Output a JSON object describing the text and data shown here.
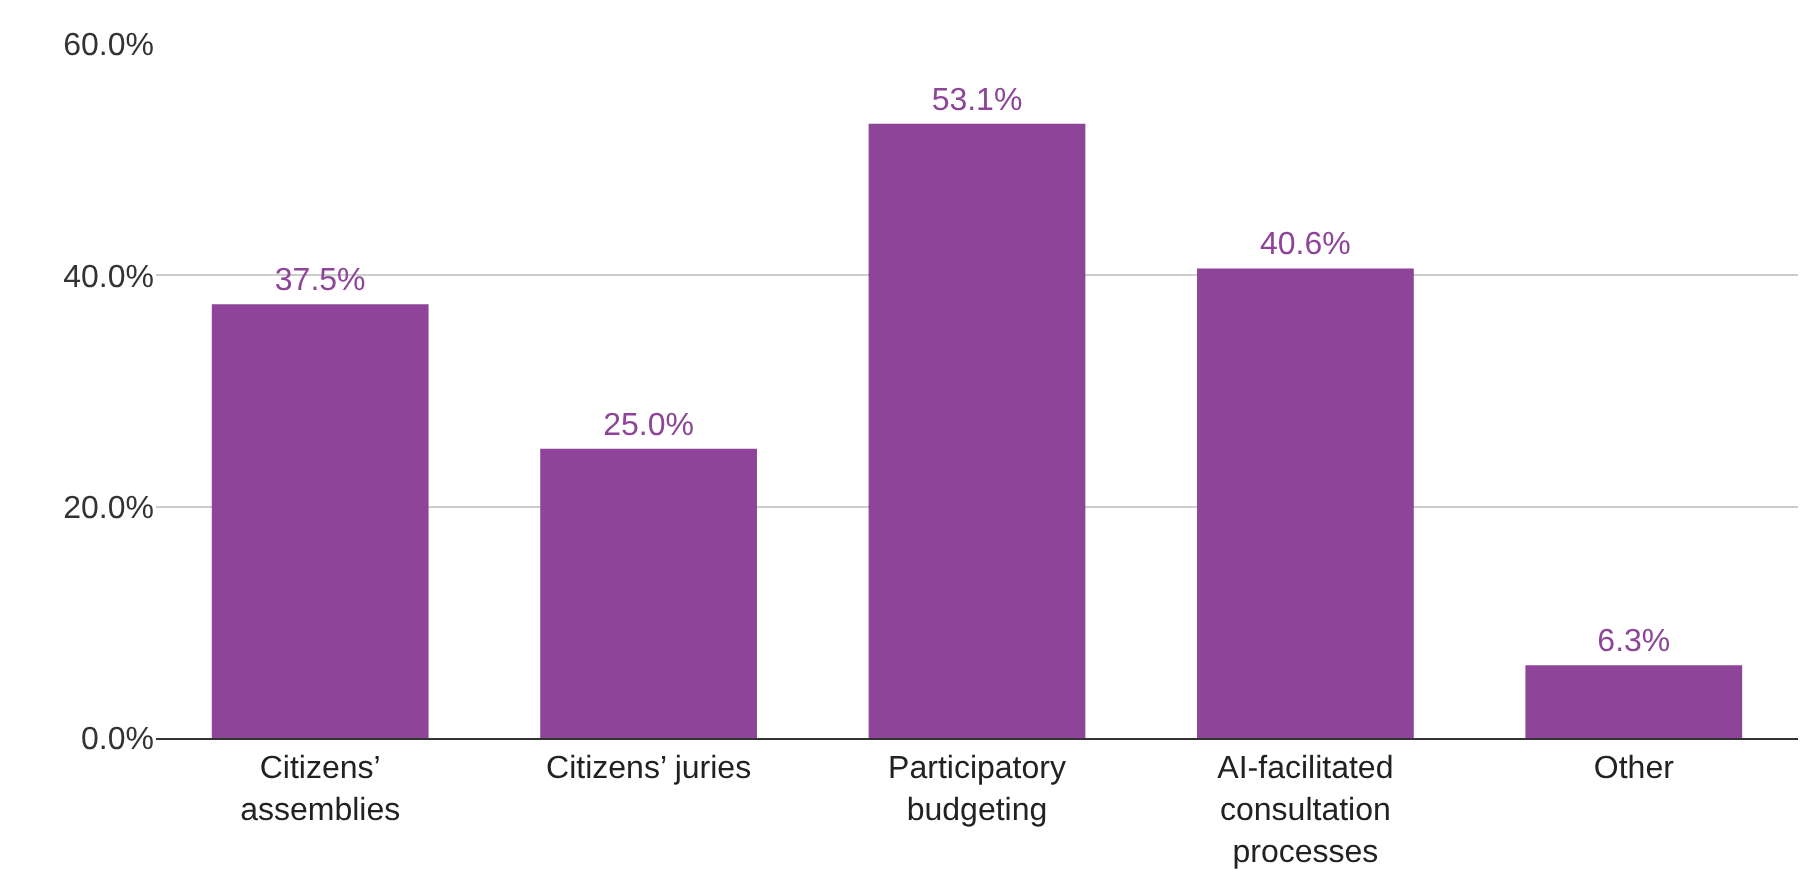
{
  "chart_data": {
    "type": "bar",
    "categories": [
      "Citizens’ assemblies",
      "Citizens’ juries",
      "Participatory budgeting",
      "AI-facilitated consultation processes",
      "Other"
    ],
    "values": [
      37.5,
      25.0,
      53.1,
      40.6,
      6.3
    ],
    "value_labels": [
      "37.5%",
      "25.0%",
      "53.1%",
      "40.6%",
      "6.3%"
    ],
    "color": "#8e4498",
    "ylim": [
      0,
      60
    ],
    "yticks": [
      {
        "value": 0,
        "label": "0.0%"
      },
      {
        "value": 20,
        "label": "20.0%"
      },
      {
        "value": 40,
        "label": "40.0%"
      },
      {
        "value": 60,
        "label": "60.0%"
      }
    ],
    "grid": "y"
  }
}
